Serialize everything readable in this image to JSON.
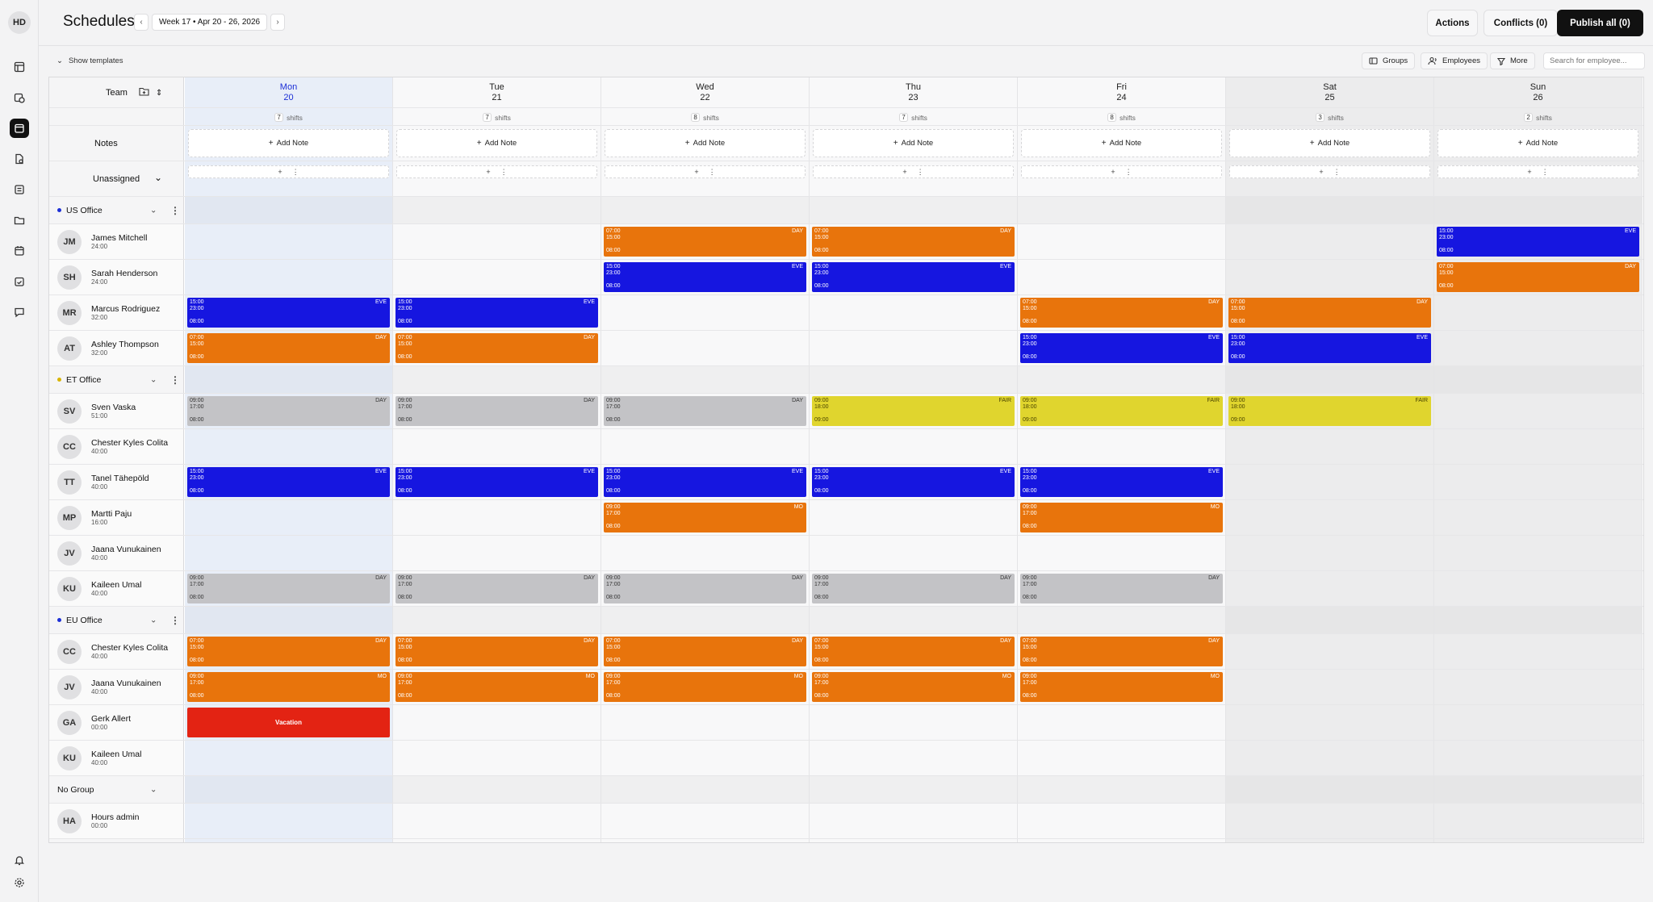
{
  "user": {
    "initials": "HD"
  },
  "header": {
    "title": "Schedules",
    "week_label": "Week 17 • Apr 20 - 26, 2026",
    "prev_icon": "chevron-left-icon",
    "next_icon": "chevron-right-icon",
    "actions_label": "Actions",
    "conflicts_label": "Conflicts (0)",
    "publish_label": "Publish all (0)"
  },
  "toolbar": {
    "show_templates_label": "Show templates",
    "groups_label": "Groups",
    "employees_label": "Employees",
    "more_label": "More",
    "search_placeholder": "Search for employee..."
  },
  "grid": {
    "team_label": "Team",
    "notes_label": "Notes",
    "unassigned_label": "Unassigned",
    "add_note_label": "Add Note",
    "shifts_word": "shifts",
    "days": [
      {
        "name": "Mon",
        "date": "20",
        "shifts": "7",
        "today": true,
        "weekend": false
      },
      {
        "name": "Tue",
        "date": "21",
        "shifts": "7",
        "today": false,
        "weekend": false
      },
      {
        "name": "Wed",
        "date": "22",
        "shifts": "8",
        "today": false,
        "weekend": false
      },
      {
        "name": "Thu",
        "date": "23",
        "shifts": "7",
        "today": false,
        "weekend": false
      },
      {
        "name": "Fri",
        "date": "24",
        "shifts": "8",
        "today": false,
        "weekend": false
      },
      {
        "name": "Sat",
        "date": "25",
        "shifts": "3",
        "today": false,
        "weekend": true
      },
      {
        "name": "Sun",
        "date": "26",
        "shifts": "2",
        "today": false,
        "weekend": true
      }
    ]
  },
  "colors": {
    "orange": "#e8740c",
    "blue": "#1616e0",
    "gray": "#c3c3c6",
    "yellow": "#e0d52e",
    "red": "#e32313",
    "today": "#1c2fd6"
  },
  "groups": [
    {
      "name": "US Office",
      "dot": "#1c2fd6",
      "employees": [
        {
          "initials": "JM",
          "name": "James Mitchell",
          "hours": "24:00",
          "shifts": [
            null,
            null,
            {
              "start": "07:00",
              "end": "15:00",
              "len": "08:00",
              "label": "DAY",
              "color": "orange"
            },
            {
              "start": "07:00",
              "end": "15:00",
              "len": "08:00",
              "label": "DAY",
              "color": "orange"
            },
            null,
            null,
            {
              "start": "15:00",
              "end": "23:00",
              "len": "08:00",
              "label": "EVE",
              "color": "blue"
            }
          ]
        },
        {
          "initials": "SH",
          "name": "Sarah Henderson",
          "hours": "24:00",
          "shifts": [
            null,
            null,
            {
              "start": "15:00",
              "end": "23:00",
              "len": "08:00",
              "label": "EVE",
              "color": "blue"
            },
            {
              "start": "15:00",
              "end": "23:00",
              "len": "08:00",
              "label": "EVE",
              "color": "blue"
            },
            null,
            null,
            {
              "start": "07:00",
              "end": "15:00",
              "len": "08:00",
              "label": "DAY",
              "color": "orange"
            }
          ]
        },
        {
          "initials": "MR",
          "name": "Marcus Rodriguez",
          "hours": "32:00",
          "shifts": [
            {
              "start": "15:00",
              "end": "23:00",
              "len": "08:00",
              "label": "EVE",
              "color": "blue"
            },
            {
              "start": "15:00",
              "end": "23:00",
              "len": "08:00",
              "label": "EVE",
              "color": "blue"
            },
            null,
            null,
            {
              "start": "07:00",
              "end": "15:00",
              "len": "08:00",
              "label": "DAY",
              "color": "orange"
            },
            {
              "start": "07:00",
              "end": "15:00",
              "len": "08:00",
              "label": "DAY",
              "color": "orange"
            },
            null
          ]
        },
        {
          "initials": "AT",
          "name": "Ashley Thompson",
          "hours": "32:00",
          "shifts": [
            {
              "start": "07:00",
              "end": "15:00",
              "len": "08:00",
              "label": "DAY",
              "color": "orange"
            },
            {
              "start": "07:00",
              "end": "15:00",
              "len": "08:00",
              "label": "DAY",
              "color": "orange"
            },
            null,
            null,
            {
              "start": "15:00",
              "end": "23:00",
              "len": "08:00",
              "label": "EVE",
              "color": "blue"
            },
            {
              "start": "15:00",
              "end": "23:00",
              "len": "08:00",
              "label": "EVE",
              "color": "blue"
            },
            null
          ]
        }
      ]
    },
    {
      "name": "ET Office",
      "dot": "#d8b400",
      "employees": [
        {
          "initials": "SV",
          "name": "Sven Vaska",
          "hours": "51:00",
          "shifts": [
            {
              "start": "09:00",
              "end": "17:00",
              "len": "08:00",
              "label": "DAY",
              "color": "gray"
            },
            {
              "start": "09:00",
              "end": "17:00",
              "len": "08:00",
              "label": "DAY",
              "color": "gray"
            },
            {
              "start": "09:00",
              "end": "17:00",
              "len": "08:00",
              "label": "DAY",
              "color": "gray"
            },
            {
              "start": "09:00",
              "end": "18:00",
              "len": "09:00",
              "label": "FAIR",
              "color": "yellow"
            },
            {
              "start": "09:00",
              "end": "18:00",
              "len": "09:00",
              "label": "FAIR",
              "color": "yellow"
            },
            {
              "start": "09:00",
              "end": "18:00",
              "len": "09:00",
              "label": "FAIR",
              "color": "yellow"
            },
            null
          ]
        },
        {
          "initials": "CC",
          "name": "Chester Kyles Colita",
          "hours": "40:00",
          "shifts": [
            null,
            null,
            null,
            null,
            null,
            null,
            null
          ]
        },
        {
          "initials": "TT",
          "name": "Tanel Tähepöld",
          "hours": "40:00",
          "shifts": [
            {
              "start": "15:00",
              "end": "23:00",
              "len": "08:00",
              "label": "EVE",
              "color": "blue"
            },
            {
              "start": "15:00",
              "end": "23:00",
              "len": "08:00",
              "label": "EVE",
              "color": "blue"
            },
            {
              "start": "15:00",
              "end": "23:00",
              "len": "08:00",
              "label": "EVE",
              "color": "blue"
            },
            {
              "start": "15:00",
              "end": "23:00",
              "len": "08:00",
              "label": "EVE",
              "color": "blue"
            },
            {
              "start": "15:00",
              "end": "23:00",
              "len": "08:00",
              "label": "EVE",
              "color": "blue"
            },
            null,
            null
          ]
        },
        {
          "initials": "MP",
          "name": "Martti Paju",
          "hours": "16:00",
          "shifts": [
            null,
            null,
            {
              "start": "09:00",
              "end": "17:00",
              "len": "08:00",
              "label": "MO",
              "color": "orange"
            },
            null,
            {
              "start": "09:00",
              "end": "17:00",
              "len": "08:00",
              "label": "MO",
              "color": "orange"
            },
            null,
            null
          ]
        },
        {
          "initials": "JV",
          "name": "Jaana Vunukainen",
          "hours": "40:00",
          "shifts": [
            null,
            null,
            null,
            null,
            null,
            null,
            null
          ]
        },
        {
          "initials": "KU",
          "name": "Kaileen Umal",
          "hours": "40:00",
          "shifts": [
            {
              "start": "09:00",
              "end": "17:00",
              "len": "08:00",
              "label": "DAY",
              "color": "gray"
            },
            {
              "start": "09:00",
              "end": "17:00",
              "len": "08:00",
              "label": "DAY",
              "color": "gray"
            },
            {
              "start": "09:00",
              "end": "17:00",
              "len": "08:00",
              "label": "DAY",
              "color": "gray"
            },
            {
              "start": "09:00",
              "end": "17:00",
              "len": "08:00",
              "label": "DAY",
              "color": "gray"
            },
            {
              "start": "09:00",
              "end": "17:00",
              "len": "08:00",
              "label": "DAY",
              "color": "gray"
            },
            null,
            null
          ]
        }
      ]
    },
    {
      "name": "EU Office",
      "dot": "#1c2fd6",
      "employees": [
        {
          "initials": "CC",
          "name": "Chester Kyles Colita",
          "hours": "40:00",
          "shifts": [
            {
              "start": "07:00",
              "end": "15:00",
              "len": "08:00",
              "label": "DAY",
              "color": "orange"
            },
            {
              "start": "07:00",
              "end": "15:00",
              "len": "08:00",
              "label": "DAY",
              "color": "orange"
            },
            {
              "start": "07:00",
              "end": "15:00",
              "len": "08:00",
              "label": "DAY",
              "color": "orange"
            },
            {
              "start": "07:00",
              "end": "15:00",
              "len": "08:00",
              "label": "DAY",
              "color": "orange"
            },
            {
              "start": "07:00",
              "end": "15:00",
              "len": "08:00",
              "label": "DAY",
              "color": "orange"
            },
            null,
            null
          ]
        },
        {
          "initials": "JV",
          "name": "Jaana Vunukainen",
          "hours": "40:00",
          "shifts": [
            {
              "start": "09:00",
              "end": "17:00",
              "len": "08:00",
              "label": "MO",
              "color": "orange"
            },
            {
              "start": "09:00",
              "end": "17:00",
              "len": "08:00",
              "label": "MO",
              "color": "orange"
            },
            {
              "start": "09:00",
              "end": "17:00",
              "len": "08:00",
              "label": "MO",
              "color": "orange"
            },
            {
              "start": "09:00",
              "end": "17:00",
              "len": "08:00",
              "label": "MO",
              "color": "orange"
            },
            {
              "start": "09:00",
              "end": "17:00",
              "len": "08:00",
              "label": "MO",
              "color": "orange"
            },
            null,
            null
          ]
        },
        {
          "initials": "GA",
          "name": "Gerk Allert",
          "hours": "00:00",
          "shifts": [
            {
              "vacation": true,
              "label": "Vacation",
              "color": "red"
            },
            null,
            null,
            null,
            null,
            null,
            null
          ]
        },
        {
          "initials": "KU",
          "name": "Kaileen Umal",
          "hours": "40:00",
          "shifts": [
            null,
            null,
            null,
            null,
            null,
            null,
            null
          ]
        }
      ]
    },
    {
      "name": "No Group",
      "dot": "",
      "employees": [
        {
          "initials": "HA",
          "name": "Hours admin",
          "hours": "00:00",
          "shifts": [
            null,
            null,
            null,
            null,
            null,
            null,
            null
          ]
        }
      ]
    }
  ]
}
